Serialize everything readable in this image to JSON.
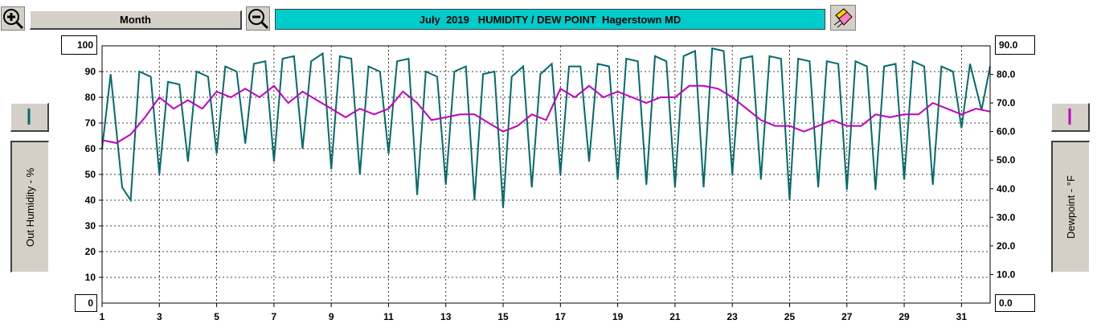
{
  "toolbar": {
    "zoom_in_icon": "zoom-in-icon",
    "zoom_out_icon": "zoom-out-icon",
    "range_label": "Month",
    "title": "July  2019   HUMIDITY / DEW POINT  Hagerstown MD",
    "eraser_icon": "eraser-icon"
  },
  "left_axis": {
    "label": "Out Humidity - %",
    "top_value": "100",
    "bottom_value": "0",
    "ticks": [
      "90",
      "80",
      "70",
      "60",
      "50",
      "40",
      "30",
      "20",
      "10"
    ],
    "color": "#006b6b"
  },
  "right_axis": {
    "label": "Dewpoint - °F",
    "top_value": "90.0",
    "bottom_value": "0.0",
    "ticks": [
      "80.0",
      "70.0",
      "60.0",
      "50.0",
      "40.0",
      "30.0",
      "20.0",
      "10.0"
    ],
    "color": "#c000c0"
  },
  "chart_data": {
    "type": "line",
    "x_unit": "day of July 2019",
    "xlim": [
      1,
      32
    ],
    "x_ticks": [
      "1",
      "3",
      "5",
      "7",
      "9",
      "11",
      "13",
      "15",
      "17",
      "19",
      "21",
      "23",
      "25",
      "27",
      "29",
      "31"
    ],
    "series": [
      {
        "axis": "left",
        "color": "#006b6b",
        "ylim": [
          0,
          100
        ],
        "x": [
          1.0,
          1.3,
          1.7,
          2.0,
          2.3,
          2.7,
          3.0,
          3.3,
          3.7,
          4.0,
          4.3,
          4.7,
          5.0,
          5.3,
          5.7,
          6.0,
          6.3,
          6.7,
          7.0,
          7.3,
          7.7,
          8.0,
          8.3,
          8.7,
          9.0,
          9.3,
          9.7,
          10.0,
          10.3,
          10.7,
          11.0,
          11.3,
          11.7,
          12.0,
          12.3,
          12.7,
          13.0,
          13.3,
          13.7,
          14.0,
          14.3,
          14.7,
          15.0,
          15.3,
          15.7,
          16.0,
          16.3,
          16.7,
          17.0,
          17.3,
          17.7,
          18.0,
          18.3,
          18.7,
          19.0,
          19.3,
          19.7,
          20.0,
          20.3,
          20.7,
          21.0,
          21.3,
          21.7,
          22.0,
          22.3,
          22.7,
          23.0,
          23.3,
          23.7,
          24.0,
          24.3,
          24.7,
          25.0,
          25.3,
          25.7,
          26.0,
          26.3,
          26.7,
          27.0,
          27.3,
          27.7,
          28.0,
          28.3,
          28.7,
          29.0,
          29.3,
          29.7,
          30.0,
          30.3,
          30.7,
          31.0,
          31.3,
          31.7,
          32.0
        ],
        "y": [
          60,
          89,
          45,
          40,
          90,
          88,
          50,
          86,
          85,
          55,
          90,
          88,
          58,
          92,
          90,
          62,
          93,
          94,
          55,
          95,
          96,
          60,
          94,
          97,
          52,
          96,
          95,
          50,
          92,
          90,
          58,
          94,
          95,
          42,
          90,
          88,
          46,
          90,
          92,
          40,
          89,
          90,
          37,
          88,
          92,
          45,
          89,
          93,
          50,
          92,
          92,
          55,
          93,
          92,
          48,
          95,
          94,
          46,
          96,
          94,
          45,
          96,
          98,
          45,
          99,
          98,
          50,
          95,
          96,
          48,
          96,
          95,
          40,
          95,
          94,
          45,
          94,
          93,
          44,
          94,
          92,
          44,
          92,
          93,
          48,
          94,
          92,
          46,
          92,
          90,
          68,
          93,
          75,
          92
        ]
      },
      {
        "axis": "right",
        "color": "#c000c0",
        "ylim": [
          0,
          90
        ],
        "x": [
          1.0,
          1.5,
          2.0,
          2.5,
          3.0,
          3.5,
          4.0,
          4.5,
          5.0,
          5.5,
          6.0,
          6.5,
          7.0,
          7.5,
          8.0,
          8.5,
          9.0,
          9.5,
          10.0,
          10.5,
          11.0,
          11.5,
          12.0,
          12.5,
          13.0,
          13.5,
          14.0,
          14.5,
          15.0,
          15.5,
          16.0,
          16.5,
          17.0,
          17.5,
          18.0,
          18.5,
          19.0,
          19.5,
          20.0,
          20.5,
          21.0,
          21.5,
          22.0,
          22.5,
          23.0,
          23.5,
          24.0,
          24.5,
          25.0,
          25.5,
          26.0,
          26.5,
          27.0,
          27.5,
          28.0,
          28.5,
          29.0,
          29.5,
          30.0,
          30.5,
          31.0,
          31.5,
          32.0
        ],
        "y": [
          57,
          56,
          59,
          65,
          72,
          68,
          71,
          68,
          74,
          72,
          75,
          72,
          76,
          70,
          74,
          71,
          68,
          65,
          68,
          66,
          68,
          74,
          70,
          64,
          65,
          66,
          66,
          63,
          60,
          62,
          66,
          64,
          75,
          72,
          76,
          72,
          74,
          72,
          70,
          72,
          72,
          76,
          76,
          75,
          72,
          68,
          64,
          62,
          62,
          60,
          62,
          64,
          62,
          62,
          66,
          65,
          66,
          66,
          70,
          68,
          66,
          68,
          67
        ]
      }
    ]
  }
}
